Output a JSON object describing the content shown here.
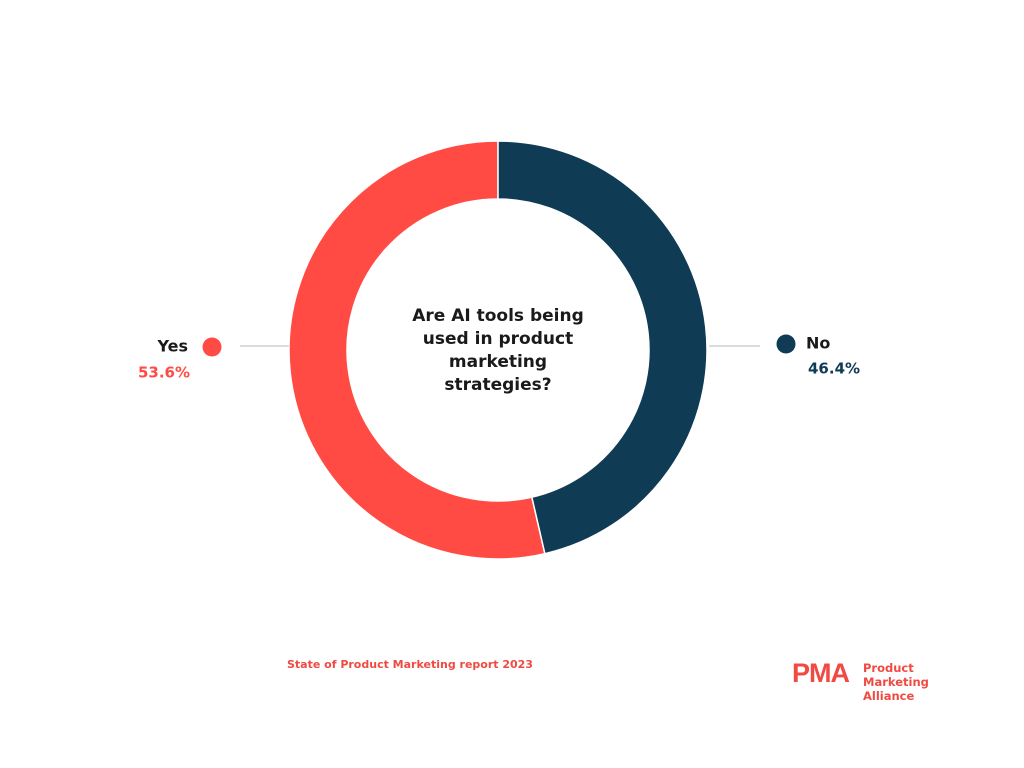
{
  "chart_data": {
    "type": "pie",
    "donut": true,
    "title": "Are AI tools being used in product marketing strategies?",
    "categories": [
      "Yes",
      "No"
    ],
    "values": [
      53.6,
      46.4
    ],
    "value_labels": [
      "53.6%",
      "46.4%"
    ],
    "colors": [
      "#ff4b44",
      "#0f3b55"
    ],
    "source": "State of Product Marketing report 2023"
  },
  "logo": {
    "mark": "PMA",
    "name": "Product Marketing Alliance"
  }
}
